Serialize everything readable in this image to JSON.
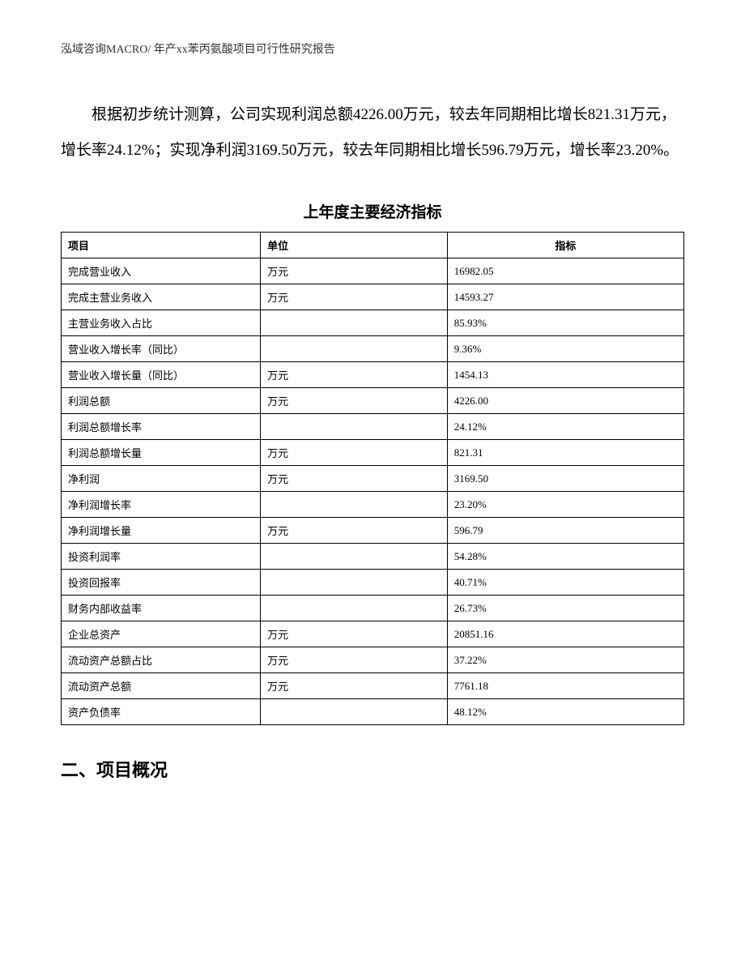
{
  "header": {
    "text": "泓域咨询MACRO/ 年产xx苯丙氨酸项目可行性研究报告"
  },
  "paragraph": {
    "text": "根据初步统计测算，公司实现利润总额4226.00万元，较去年同期相比增长821.31万元，增长率24.12%；实现净利润3169.50万元，较去年同期相比增长596.79万元，增长率23.20%。"
  },
  "table": {
    "title": "上年度主要经济指标",
    "columns": [
      "项目",
      "单位",
      "指标"
    ],
    "rows": [
      [
        "完成营业收入",
        "万元",
        "16982.05"
      ],
      [
        "完成主营业务收入",
        "万元",
        "14593.27"
      ],
      [
        "主营业务收入占比",
        "",
        "85.93%"
      ],
      [
        "营业收入增长率（同比）",
        "",
        "9.36%"
      ],
      [
        "营业收入增长量（同比）",
        "万元",
        "1454.13"
      ],
      [
        "利润总额",
        "万元",
        "4226.00"
      ],
      [
        "利润总额增长率",
        "",
        "24.12%"
      ],
      [
        "利润总额增长量",
        "万元",
        "821.31"
      ],
      [
        "净利润",
        "万元",
        "3169.50"
      ],
      [
        "净利润增长率",
        "",
        "23.20%"
      ],
      [
        "净利润增长量",
        "万元",
        "596.79"
      ],
      [
        "投资利润率",
        "",
        "54.28%"
      ],
      [
        "投资回报率",
        "",
        "40.71%"
      ],
      [
        "财务内部收益率",
        "",
        "26.73%"
      ],
      [
        "企业总资产",
        "万元",
        "20851.16"
      ],
      [
        "流动资产总额占比",
        "万元",
        "37.22%"
      ],
      [
        "流动资产总额",
        "万元",
        "7761.18"
      ],
      [
        "资产负债率",
        "",
        "48.12%"
      ]
    ]
  },
  "section": {
    "title": "二、项目概况"
  },
  "style": {
    "background_color": "#ffffff",
    "text_color": "#000000",
    "header_color": "#333333",
    "border_color": "#000000",
    "body_fontsize": 19,
    "table_fontsize": 13,
    "header_fontsize": 14,
    "section_fontsize": 22
  }
}
